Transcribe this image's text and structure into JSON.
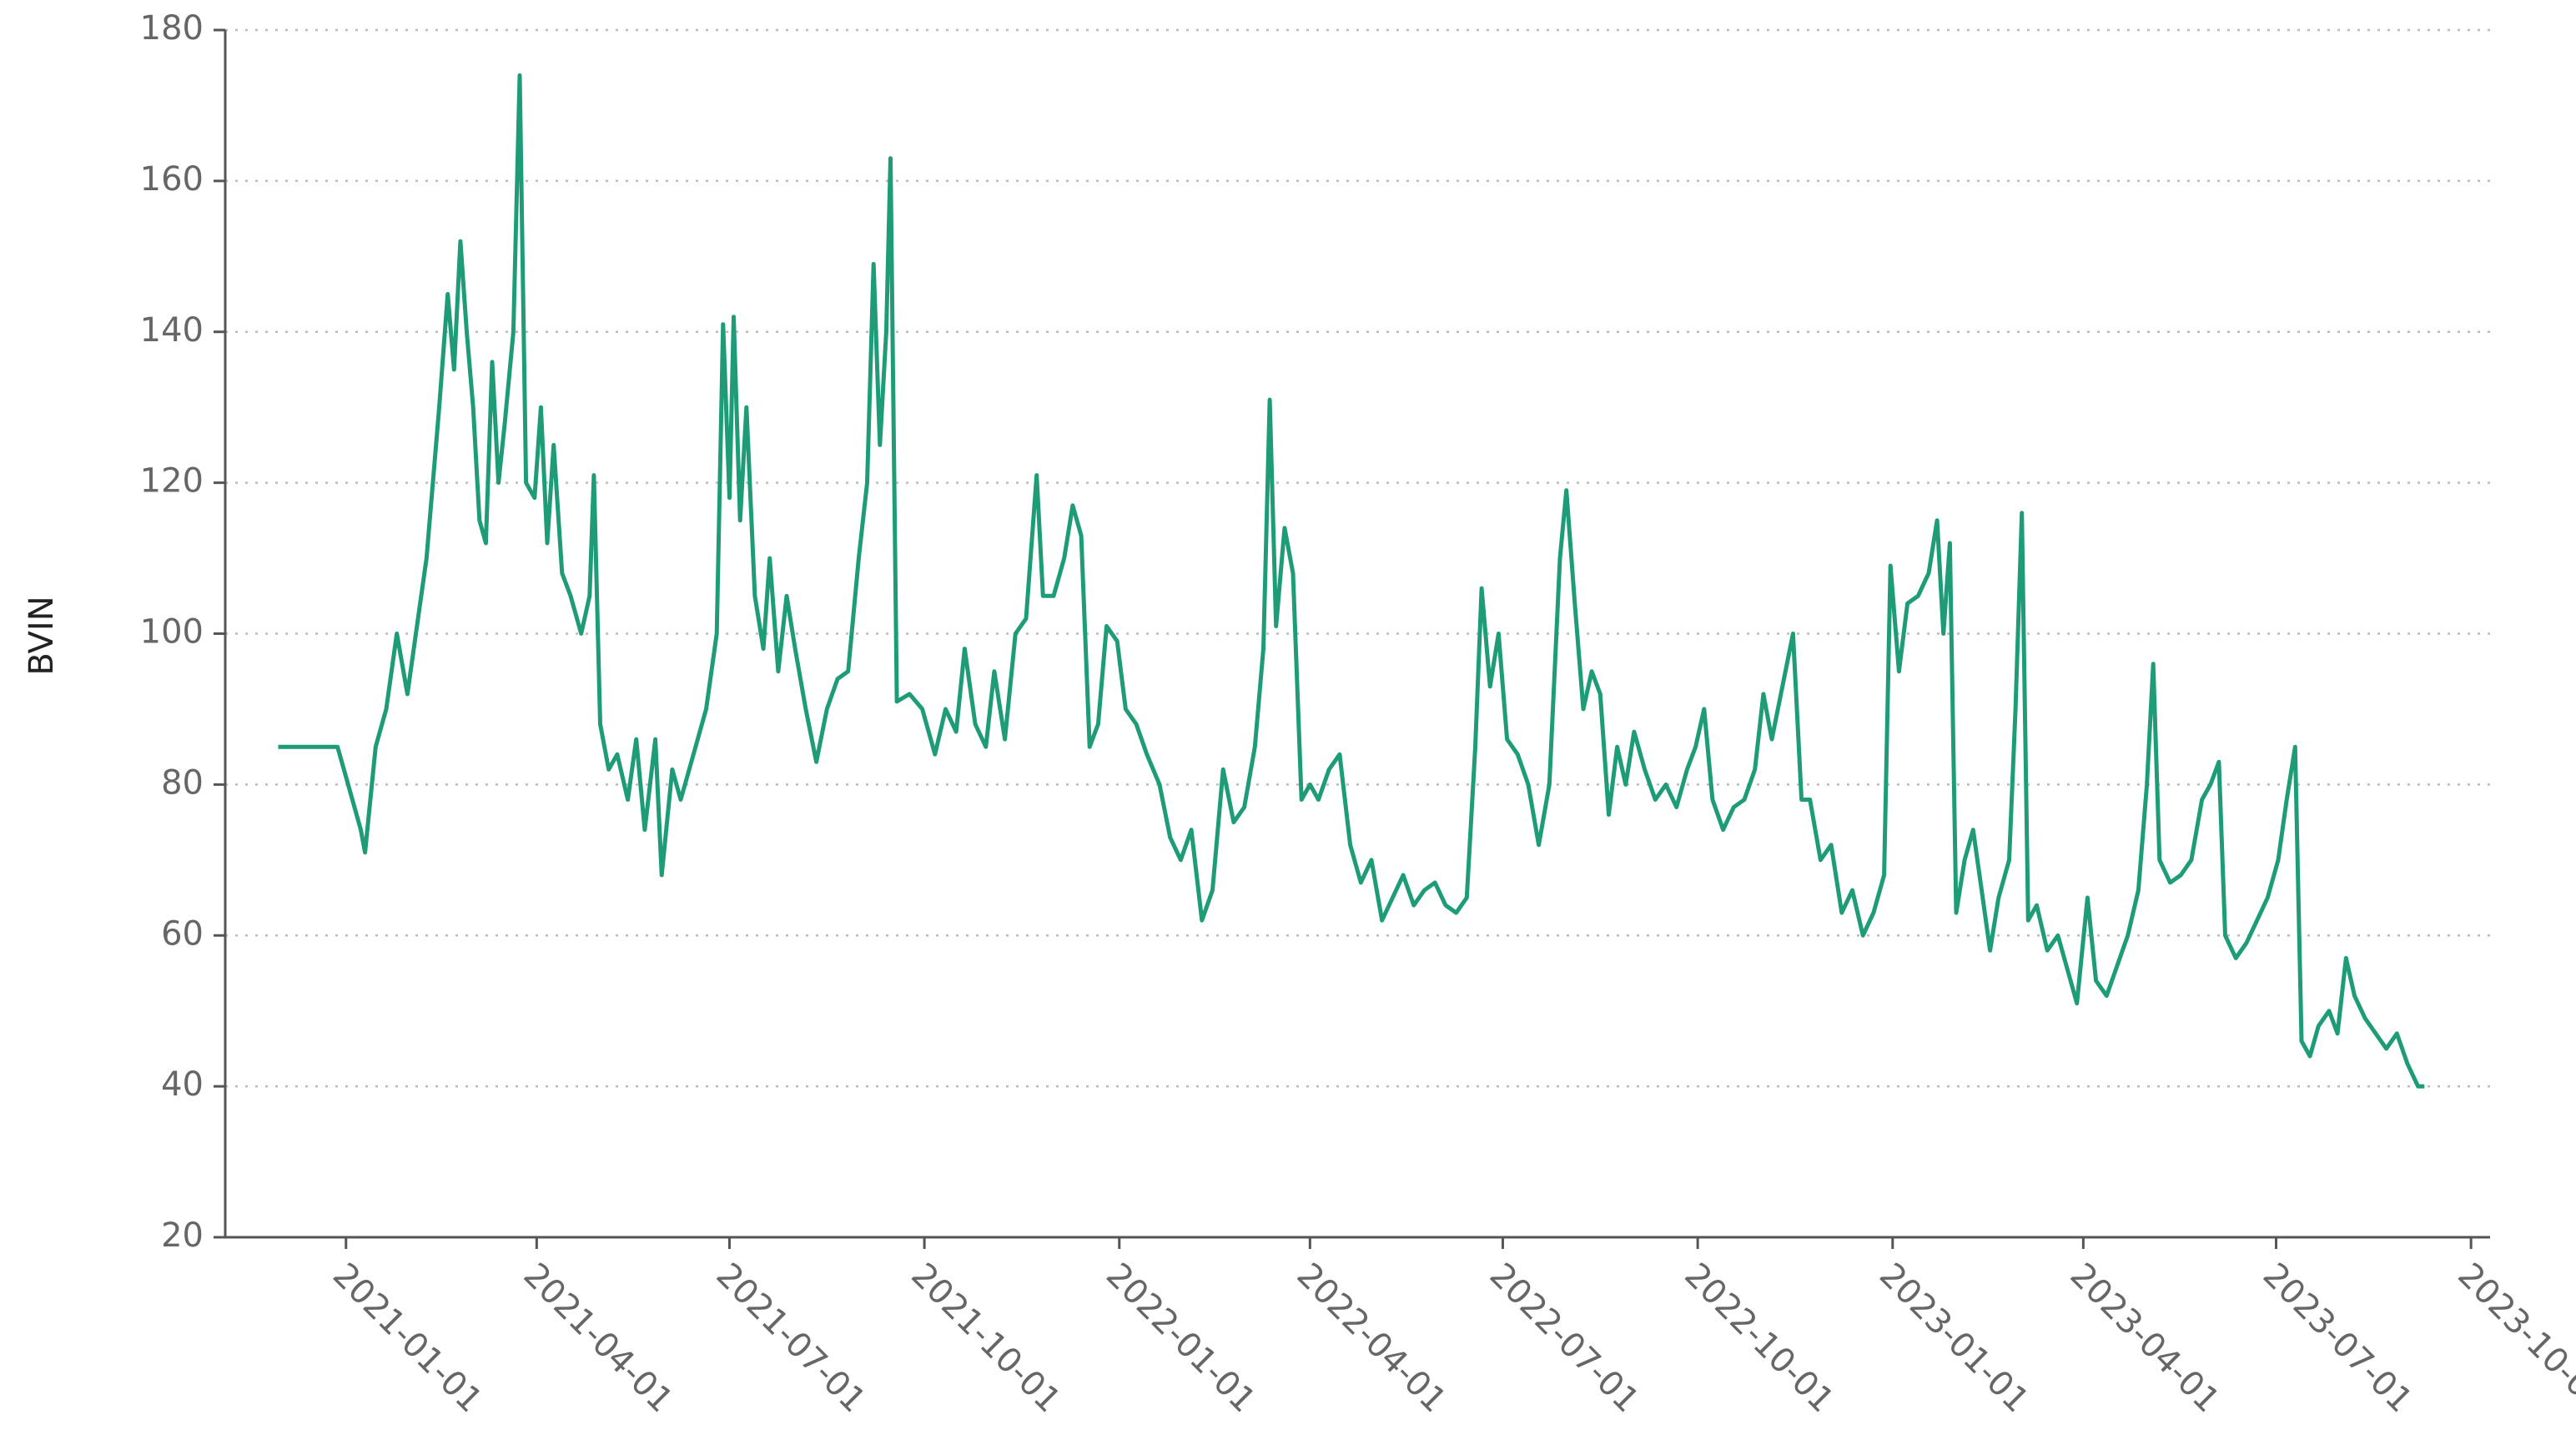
{
  "chart_data": {
    "type": "line",
    "ylabel": "BVIN",
    "color": "#1e9c78",
    "x": [
      "2020-11-30",
      "2020-12-28",
      "2021-01-01",
      "2021-01-08",
      "2021-01-10",
      "2021-01-15",
      "2021-01-20",
      "2021-01-25",
      "2021-01-30",
      "2021-02-04",
      "2021-02-08",
      "2021-02-14",
      "2021-02-18",
      "2021-02-21",
      "2021-02-24",
      "2021-02-27",
      "2021-03-02",
      "2021-03-05",
      "2021-03-08",
      "2021-03-11",
      "2021-03-14",
      "2021-03-17",
      "2021-03-21",
      "2021-03-24",
      "2021-03-27",
      "2021-03-31",
      "2021-04-03",
      "2021-04-06",
      "2021-04-09",
      "2021-04-13",
      "2021-04-17",
      "2021-04-22",
      "2021-04-26",
      "2021-04-28",
      "2021-05-01",
      "2021-05-05",
      "2021-05-09",
      "2021-05-14",
      "2021-05-18",
      "2021-05-22",
      "2021-05-27",
      "2021-05-30",
      "2021-06-04",
      "2021-06-08",
      "2021-06-14",
      "2021-06-20",
      "2021-06-25",
      "2021-06-28",
      "2021-07-01",
      "2021-07-03",
      "2021-07-06",
      "2021-07-09",
      "2021-07-13",
      "2021-07-17",
      "2021-07-20",
      "2021-07-24",
      "2021-07-28",
      "2021-08-01",
      "2021-08-06",
      "2021-08-11",
      "2021-08-16",
      "2021-08-21",
      "2021-08-26",
      "2021-08-31",
      "2021-09-04",
      "2021-09-07",
      "2021-09-10",
      "2021-09-13",
      "2021-09-15",
      "2021-09-18",
      "2021-09-24",
      "2021-09-30",
      "2021-10-06",
      "2021-10-11",
      "2021-10-16",
      "2021-10-20",
      "2021-10-25",
      "2021-10-30",
      "2021-11-03",
      "2021-11-08",
      "2021-11-13",
      "2021-11-18",
      "2021-11-23",
      "2021-11-26",
      "2021-12-01",
      "2021-12-06",
      "2021-12-10",
      "2021-12-14",
      "2021-12-18",
      "2021-12-22",
      "2021-12-26",
      "2021-12-31",
      "2022-01-04",
      "2022-01-09",
      "2022-01-14",
      "2022-01-20",
      "2022-01-25",
      "2022-01-30",
      "2022-02-04",
      "2022-02-09",
      "2022-02-14",
      "2022-02-19",
      "2022-02-24",
      "2022-03-01",
      "2022-03-06",
      "2022-03-10",
      "2022-03-13",
      "2022-03-16",
      "2022-03-20",
      "2022-03-24",
      "2022-03-28",
      "2022-04-01",
      "2022-04-05",
      "2022-04-10",
      "2022-04-15",
      "2022-04-20",
      "2022-04-25",
      "2022-04-30",
      "2022-05-05",
      "2022-05-10",
      "2022-05-15",
      "2022-05-20",
      "2022-05-25",
      "2022-05-30",
      "2022-06-04",
      "2022-06-09",
      "2022-06-14",
      "2022-06-18",
      "2022-06-21",
      "2022-06-25",
      "2022-06-29",
      "2022-07-03",
      "2022-07-08",
      "2022-07-13",
      "2022-07-18",
      "2022-07-23",
      "2022-07-28",
      "2022-07-31",
      "2022-08-04",
      "2022-08-08",
      "2022-08-12",
      "2022-08-16",
      "2022-08-20",
      "2022-08-24",
      "2022-08-28",
      "2022-09-01",
      "2022-09-06",
      "2022-09-11",
      "2022-09-16",
      "2022-09-21",
      "2022-09-26",
      "2022-09-30",
      "2022-10-04",
      "2022-10-08",
      "2022-10-13",
      "2022-10-18",
      "2022-10-23",
      "2022-10-28",
      "2022-11-01",
      "2022-11-05",
      "2022-11-10",
      "2022-11-15",
      "2022-11-19",
      "2022-11-23",
      "2022-11-28",
      "2022-12-03",
      "2022-12-08",
      "2022-12-13",
      "2022-12-18",
      "2022-12-23",
      "2022-12-28",
      "2022-12-31",
      "2023-01-04",
      "2023-01-08",
      "2023-01-13",
      "2023-01-18",
      "2023-01-22",
      "2023-01-25",
      "2023-01-28",
      "2023-01-31",
      "2023-02-04",
      "2023-02-08",
      "2023-02-12",
      "2023-02-16",
      "2023-02-20",
      "2023-02-25",
      "2023-02-28",
      "2023-03-03",
      "2023-03-06",
      "2023-03-10",
      "2023-03-15",
      "2023-03-20",
      "2023-03-25",
      "2023-03-29",
      "2023-04-03",
      "2023-04-07",
      "2023-04-12",
      "2023-04-17",
      "2023-04-22",
      "2023-04-27",
      "2023-05-01",
      "2023-05-04",
      "2023-05-07",
      "2023-05-12",
      "2023-05-17",
      "2023-05-22",
      "2023-05-27",
      "2023-05-31",
      "2023-06-04",
      "2023-06-07",
      "2023-06-12",
      "2023-06-17",
      "2023-06-22",
      "2023-06-27",
      "2023-07-02",
      "2023-07-06",
      "2023-07-10",
      "2023-07-13",
      "2023-07-17",
      "2023-07-21",
      "2023-07-26",
      "2023-07-30",
      "2023-08-03",
      "2023-08-07",
      "2023-08-12",
      "2023-08-17",
      "2023-08-22",
      "2023-08-27",
      "2023-09-01",
      "2023-09-06",
      "2023-09-09"
    ],
    "values": [
      85,
      85,
      81,
      74,
      71,
      85,
      90,
      100,
      92,
      102,
      110,
      130,
      145,
      135,
      152,
      140,
      130,
      115,
      112,
      136,
      120,
      128,
      140,
      174,
      120,
      118,
      130,
      112,
      125,
      108,
      105,
      100,
      105,
      121,
      88,
      82,
      84,
      78,
      86,
      74,
      86,
      68,
      82,
      78,
      84,
      90,
      100,
      141,
      118,
      142,
      115,
      130,
      105,
      98,
      110,
      95,
      105,
      98,
      90,
      83,
      90,
      94,
      95,
      110,
      120,
      149,
      125,
      140,
      163,
      91,
      92,
      90,
      84,
      90,
      87,
      98,
      88,
      85,
      95,
      86,
      100,
      102,
      121,
      105,
      105,
      110,
      117,
      113,
      85,
      88,
      101,
      99,
      90,
      88,
      84,
      80,
      73,
      70,
      74,
      62,
      66,
      82,
      75,
      77,
      85,
      98,
      131,
      101,
      114,
      108,
      78,
      80,
      78,
      82,
      84,
      72,
      67,
      70,
      62,
      65,
      68,
      64,
      66,
      67,
      64,
      63,
      65,
      85,
      106,
      93,
      100,
      86,
      84,
      80,
      72,
      80,
      110,
      119,
      104,
      90,
      95,
      92,
      76,
      85,
      80,
      87,
      82,
      78,
      80,
      77,
      82,
      85,
      90,
      78,
      74,
      77,
      78,
      82,
      92,
      86,
      93,
      100,
      78,
      78,
      70,
      72,
      63,
      66,
      60,
      63,
      68,
      109,
      95,
      104,
      105,
      108,
      115,
      100,
      112,
      63,
      70,
      74,
      66,
      58,
      65,
      70,
      90,
      116,
      62,
      64,
      58,
      60,
      55,
      51,
      65,
      54,
      52,
      56,
      60,
      66,
      80,
      96,
      70,
      67,
      68,
      70,
      78,
      80,
      83,
      60,
      57,
      59,
      62,
      65,
      70,
      78,
      85,
      46,
      44,
      48,
      50,
      47,
      57,
      52,
      49,
      47,
      45,
      47,
      43,
      40,
      40
    ],
    "xlim": [
      "2020-11-05",
      "2023-10-10"
    ],
    "xticks": [
      "2021-01-01",
      "2021-04-01",
      "2021-07-01",
      "2021-10-01",
      "2022-01-01",
      "2022-04-01",
      "2022-07-01",
      "2022-10-01",
      "2023-01-01",
      "2023-04-01",
      "2023-07-01",
      "2023-10-01"
    ],
    "ylim": [
      20,
      180
    ],
    "yticks": [
      20,
      40,
      60,
      80,
      100,
      120,
      140,
      160,
      180
    ],
    "grid": true
  }
}
